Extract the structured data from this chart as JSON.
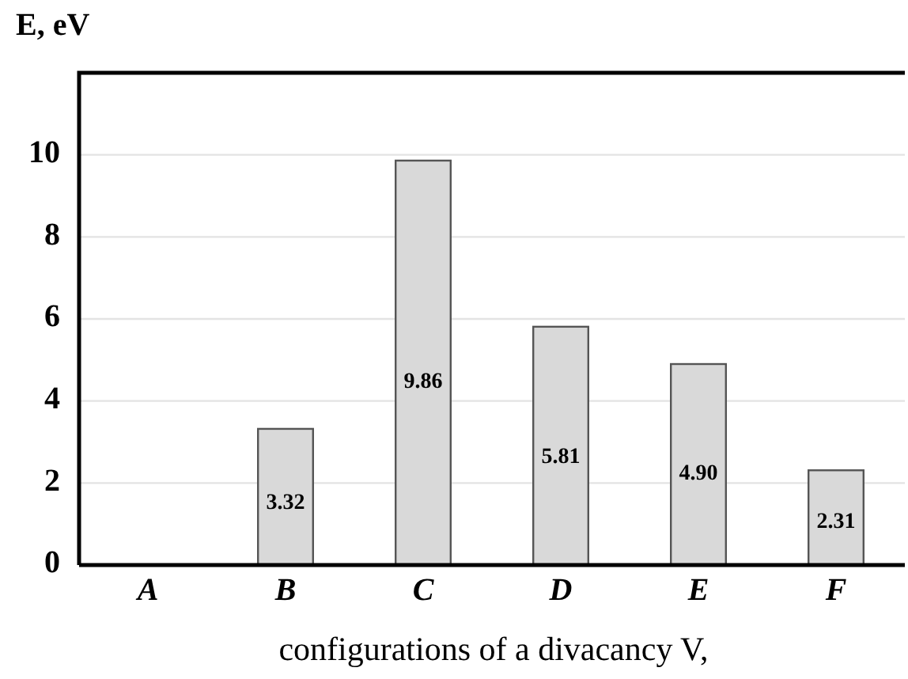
{
  "chart_data": {
    "type": "bar",
    "ylabel": "E, eV",
    "xlabel": "configurations of a divacancy V,",
    "categories": [
      "A",
      "B",
      "C",
      "D",
      "E",
      "F"
    ],
    "values": [
      0,
      3.32,
      9.86,
      5.81,
      4.9,
      2.31
    ],
    "value_labels": [
      null,
      "3.32",
      "9.86",
      "5.81",
      "4.90",
      "2.31"
    ],
    "color": "#d9d9d9",
    "ylim": [
      0,
      12
    ],
    "yticks": [
      0,
      2,
      4,
      6,
      8,
      10
    ],
    "grid": "y"
  }
}
